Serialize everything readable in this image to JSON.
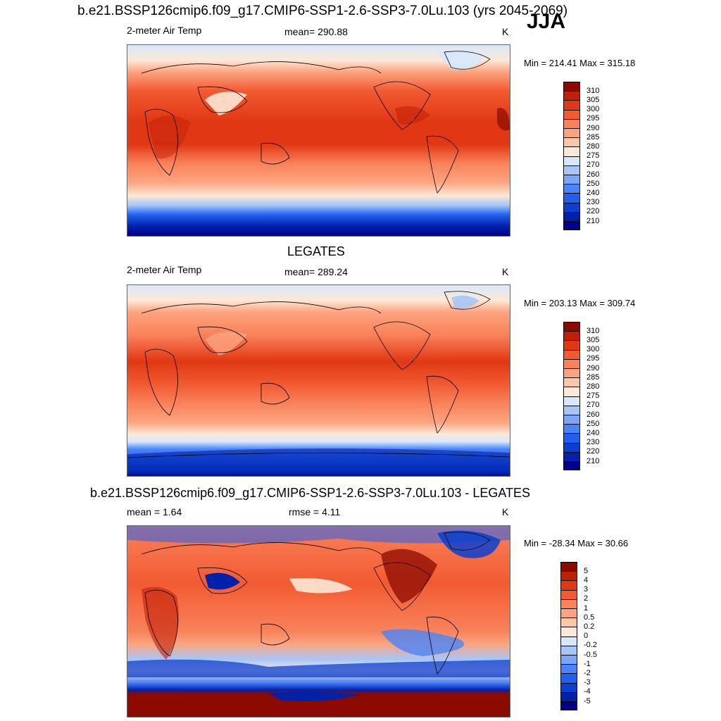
{
  "figure": {
    "main_title": "b.e21.BSSP126cmip6.f09_g17.CMIP6-SSP1-2.6-SSP3-7.0Lu.103 (yrs 2045-2069)",
    "season": "JJA"
  },
  "panels": [
    {
      "section_title": "",
      "variable": "2-meter Air Temp",
      "stat": "mean= 290.88",
      "units": "K",
      "minmax": "Min = 214.41 Max = 315.18",
      "colorbar": {
        "colors": [
          "#00008c",
          "#0022aa",
          "#0a3fd0",
          "#2060f0",
          "#4a84f8",
          "#78a6f8",
          "#a6c6f8",
          "#d8e8fc",
          "#fde8d6",
          "#fcc7a8",
          "#fca481",
          "#f9825a",
          "#f25a32",
          "#e03814",
          "#c02006",
          "#8c0a00"
        ],
        "ticks": [
          "210",
          "220",
          "230",
          "240",
          "250",
          "260",
          "270",
          "275",
          "280",
          "285",
          "290",
          "295",
          "300",
          "305",
          "310"
        ]
      }
    },
    {
      "section_title": "LEGATES",
      "variable": "2-meter Air Temp",
      "stat": "mean= 289.24",
      "units": "K",
      "minmax": "Min = 203.13 Max = 309.74",
      "colorbar": {
        "colors": [
          "#00008c",
          "#0022aa",
          "#0a3fd0",
          "#2060f0",
          "#4a84f8",
          "#78a6f8",
          "#a6c6f8",
          "#d8e8fc",
          "#fde8d6",
          "#fcc7a8",
          "#fca481",
          "#f9825a",
          "#f25a32",
          "#e03814",
          "#c02006",
          "#8c0a00"
        ],
        "ticks": [
          "210",
          "220",
          "230",
          "240",
          "250",
          "260",
          "270",
          "275",
          "280",
          "285",
          "290",
          "295",
          "300",
          "305",
          "310"
        ]
      }
    },
    {
      "section_title": "b.e21.BSSP126cmip6.f09_g17.CMIP6-SSP1-2.6-SSP3-7.0Lu.103 - LEGATES",
      "variable": "mean =   1.64",
      "stat": "rmse =   4.11",
      "units": "K",
      "minmax": "Min = -28.34 Max =  30.66",
      "colorbar": {
        "colors": [
          "#00008c",
          "#0022aa",
          "#0a3fd0",
          "#2060f0",
          "#4a84f8",
          "#78a6f8",
          "#a6c6f8",
          "#d8e8fc",
          "#fde8d6",
          "#fcc7a8",
          "#fca481",
          "#f9825a",
          "#f25a32",
          "#e03814",
          "#c02006",
          "#8c0a00"
        ],
        "ticks": [
          "-5",
          "-4",
          "-3",
          "-2",
          "-1",
          "-0.5",
          "-0.2",
          "0",
          "0.2",
          "0.5",
          "1",
          "2",
          "3",
          "4",
          "5"
        ]
      }
    }
  ]
}
